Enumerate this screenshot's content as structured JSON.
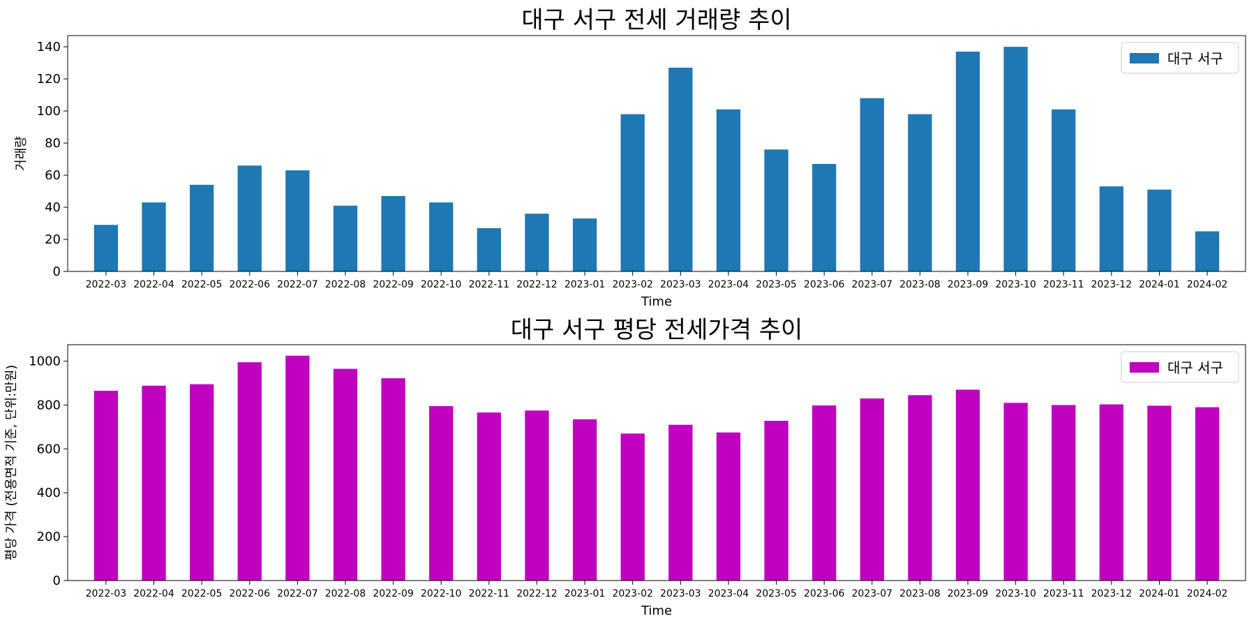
{
  "chart_data": [
    {
      "type": "bar",
      "title": "대구 서구 전세 거래량 추이",
      "xlabel": "Time",
      "ylabel": "거래량",
      "ylim": [
        0,
        147
      ],
      "yticks": [
        0,
        20,
        40,
        60,
        80,
        100,
        120,
        140
      ],
      "legend_position": "top-right",
      "categories": [
        "2022-03",
        "2022-04",
        "2022-05",
        "2022-06",
        "2022-07",
        "2022-08",
        "2022-09",
        "2022-10",
        "2022-11",
        "2022-12",
        "2023-01",
        "2023-02",
        "2023-03",
        "2023-04",
        "2023-05",
        "2023-06",
        "2023-07",
        "2023-08",
        "2023-09",
        "2023-10",
        "2023-11",
        "2023-12",
        "2024-01",
        "2024-02"
      ],
      "series": [
        {
          "name": "대구 서구",
          "color": "#1f77b4",
          "values": [
            29,
            43,
            54,
            66,
            63,
            41,
            47,
            43,
            27,
            36,
            33,
            98,
            127,
            101,
            76,
            67,
            108,
            98,
            137,
            140,
            101,
            53,
            51,
            25
          ]
        }
      ]
    },
    {
      "type": "bar",
      "title": "대구 서구 평당 전세가격 추이",
      "xlabel": "Time",
      "ylabel": "평당 가격 (전용면적 기준, 단위:만원)",
      "ylim": [
        0,
        1075
      ],
      "yticks": [
        0,
        200,
        400,
        600,
        800,
        1000
      ],
      "legend_position": "top-right",
      "categories": [
        "2022-03",
        "2022-04",
        "2022-05",
        "2022-06",
        "2022-07",
        "2022-08",
        "2022-09",
        "2022-10",
        "2022-11",
        "2022-12",
        "2023-01",
        "2023-02",
        "2023-03",
        "2023-04",
        "2023-05",
        "2023-06",
        "2023-07",
        "2023-08",
        "2023-09",
        "2023-10",
        "2023-11",
        "2023-12",
        "2024-01",
        "2024-02"
      ],
      "series": [
        {
          "name": "대구 서구",
          "color": "#bf00bf",
          "values": [
            865,
            888,
            895,
            995,
            1025,
            965,
            922,
            795,
            766,
            775,
            735,
            670,
            710,
            675,
            728,
            798,
            830,
            845,
            870,
            810,
            800,
            803,
            797,
            790
          ]
        }
      ]
    }
  ]
}
